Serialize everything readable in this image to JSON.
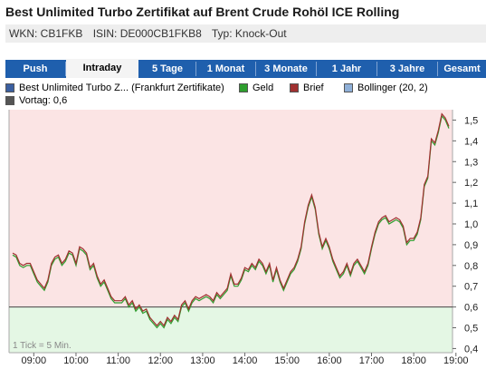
{
  "header": {
    "title": "Best Unlimited Turbo Zertifikat auf Brent Crude Rohöl ICE Rolling",
    "wkn": "WKN: CB1FKB",
    "isin": "ISIN: DE000CB1FKB8",
    "typ": "Typ: Knock-Out"
  },
  "tabs": [
    {
      "label": "Push",
      "active": false
    },
    {
      "label": "Intraday",
      "active": true
    },
    {
      "label": "5 Tage",
      "active": false
    },
    {
      "label": "1 Monat",
      "active": false
    },
    {
      "label": "3 Monate",
      "active": false
    },
    {
      "label": "1 Jahr",
      "active": false
    },
    {
      "label": "3 Jahre",
      "active": false
    },
    {
      "label": "Gesamt",
      "active": false
    }
  ],
  "legend": [
    {
      "label": "Best Unlimited Turbo Z... (Frankfurt Zertifikate)",
      "color": "#3a5fa0"
    },
    {
      "label": "Geld",
      "color": "#2e9e2e"
    },
    {
      "label": "Brief",
      "color": "#a03030"
    },
    {
      "label": "Bollinger (20, 2)",
      "color": "#8fb0d8"
    },
    {
      "label": "Vortag: 0,6",
      "color": "#555555"
    }
  ],
  "note": "1 Tick = 5 Min.",
  "colors": {
    "above": "#fbe4e4",
    "below": "#e4f7e4",
    "line_geld": "#2e9e2e",
    "line_brief": "#a03030",
    "tab_bg": "#1f5fad"
  },
  "chart_data": {
    "type": "line",
    "x_ticks": [
      "09:00",
      "10:00",
      "11:00",
      "12:00",
      "13:00",
      "14:00",
      "15:00",
      "16:00",
      "17:00",
      "18:00",
      "19:00"
    ],
    "y_ticks": [
      "1,5",
      "1,4",
      "1,3",
      "1,2",
      "1,1",
      "1,0",
      "0,9",
      "0,8",
      "0,7",
      "0,6",
      "0,5",
      "0,4"
    ],
    "ylim": [
      0.38,
      1.55
    ],
    "xlim": [
      0,
      124
    ],
    "reference": 0.6,
    "series": [
      {
        "name": "Geld",
        "values": [
          0.85,
          0.84,
          0.8,
          0.79,
          0.8,
          0.8,
          0.76,
          0.72,
          0.7,
          0.68,
          0.72,
          0.8,
          0.83,
          0.84,
          0.8,
          0.82,
          0.86,
          0.85,
          0.8,
          0.88,
          0.87,
          0.85,
          0.78,
          0.8,
          0.74,
          0.7,
          0.72,
          0.68,
          0.64,
          0.62,
          0.62,
          0.62,
          0.64,
          0.6,
          0.62,
          0.58,
          0.6,
          0.57,
          0.58,
          0.54,
          0.52,
          0.5,
          0.52,
          0.5,
          0.54,
          0.52,
          0.55,
          0.53,
          0.6,
          0.62,
          0.58,
          0.62,
          0.64,
          0.63,
          0.64,
          0.65,
          0.64,
          0.62,
          0.66,
          0.64,
          0.66,
          0.68,
          0.75,
          0.7,
          0.7,
          0.73,
          0.78,
          0.77,
          0.8,
          0.78,
          0.82,
          0.8,
          0.76,
          0.8,
          0.72,
          0.78,
          0.72,
          0.68,
          0.72,
          0.76,
          0.78,
          0.82,
          0.88,
          1.0,
          1.08,
          1.13,
          1.07,
          0.95,
          0.88,
          0.92,
          0.88,
          0.82,
          0.78,
          0.74,
          0.76,
          0.8,
          0.75,
          0.8,
          0.82,
          0.79,
          0.76,
          0.8,
          0.88,
          0.95,
          1.0,
          1.02,
          1.03,
          1.0,
          1.01,
          1.02,
          1.01,
          0.98,
          0.9,
          0.92,
          0.92,
          0.95,
          1.02,
          1.18,
          1.22,
          1.4,
          1.38,
          1.44,
          1.52,
          1.5,
          1.46
        ]
      },
      {
        "name": "Brief",
        "values": [
          0.86,
          0.85,
          0.81,
          0.8,
          0.81,
          0.81,
          0.77,
          0.73,
          0.71,
          0.69,
          0.73,
          0.81,
          0.84,
          0.85,
          0.81,
          0.83,
          0.87,
          0.86,
          0.81,
          0.89,
          0.88,
          0.86,
          0.79,
          0.81,
          0.75,
          0.71,
          0.73,
          0.69,
          0.65,
          0.63,
          0.63,
          0.63,
          0.65,
          0.61,
          0.63,
          0.59,
          0.61,
          0.58,
          0.59,
          0.55,
          0.53,
          0.51,
          0.53,
          0.51,
          0.55,
          0.53,
          0.56,
          0.54,
          0.61,
          0.63,
          0.59,
          0.63,
          0.65,
          0.64,
          0.65,
          0.66,
          0.65,
          0.63,
          0.67,
          0.65,
          0.67,
          0.69,
          0.76,
          0.71,
          0.71,
          0.74,
          0.79,
          0.78,
          0.81,
          0.79,
          0.83,
          0.81,
          0.77,
          0.81,
          0.73,
          0.79,
          0.73,
          0.69,
          0.73,
          0.77,
          0.79,
          0.83,
          0.89,
          1.01,
          1.09,
          1.14,
          1.08,
          0.96,
          0.89,
          0.93,
          0.89,
          0.83,
          0.79,
          0.75,
          0.77,
          0.81,
          0.76,
          0.81,
          0.83,
          0.8,
          0.77,
          0.81,
          0.89,
          0.96,
          1.01,
          1.03,
          1.04,
          1.01,
          1.02,
          1.03,
          1.02,
          0.99,
          0.91,
          0.93,
          0.93,
          0.96,
          1.03,
          1.19,
          1.23,
          1.41,
          1.39,
          1.45,
          1.53,
          1.51,
          1.47
        ]
      }
    ]
  }
}
